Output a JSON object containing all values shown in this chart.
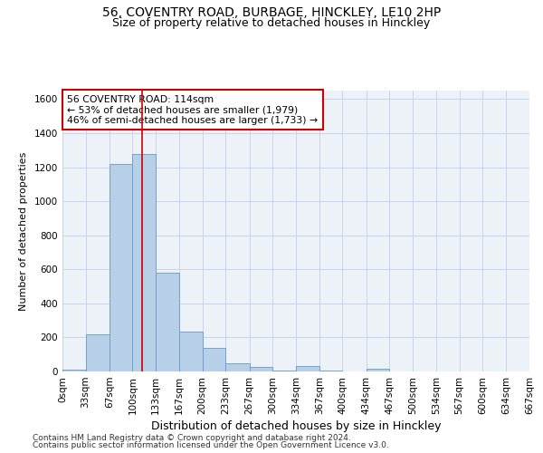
{
  "title_line1": "56, COVENTRY ROAD, BURBAGE, HINCKLEY, LE10 2HP",
  "title_line2": "Size of property relative to detached houses in Hinckley",
  "xlabel": "Distribution of detached houses by size in Hinckley",
  "ylabel": "Number of detached properties",
  "footer_line1": "Contains HM Land Registry data © Crown copyright and database right 2024.",
  "footer_line2": "Contains public sector information licensed under the Open Government Licence v3.0.",
  "bin_edges": [
    0,
    33,
    67,
    100,
    133,
    167,
    200,
    233,
    267,
    300,
    334,
    367,
    400,
    434,
    467,
    500,
    534,
    567,
    600,
    634,
    667
  ],
  "bar_heights": [
    10,
    220,
    1220,
    1280,
    580,
    235,
    140,
    50,
    25,
    5,
    30,
    5,
    0,
    15,
    0,
    0,
    0,
    0,
    0,
    0
  ],
  "bar_color": "#b8cfe8",
  "bar_edge_color": "#6699cc",
  "grid_color": "#c8d4e8",
  "background_color": "#edf2f9",
  "vline_x": 114,
  "vline_color": "#cc0000",
  "annotation_line1": "56 COVENTRY ROAD: 114sqm",
  "annotation_line2": "← 53% of detached houses are smaller (1,979)",
  "annotation_line3": "46% of semi-detached houses are larger (1,733) →",
  "annotation_box_color": "#cc0000",
  "annotation_box_facecolor": "white",
  "ylim": [
    0,
    1650
  ],
  "yticks": [
    0,
    200,
    400,
    600,
    800,
    1000,
    1200,
    1400,
    1600
  ],
  "title1_fontsize": 10,
  "title2_fontsize": 9,
  "xlabel_fontsize": 9,
  "ylabel_fontsize": 8,
  "tick_fontsize": 7.5,
  "footer_fontsize": 6.5
}
